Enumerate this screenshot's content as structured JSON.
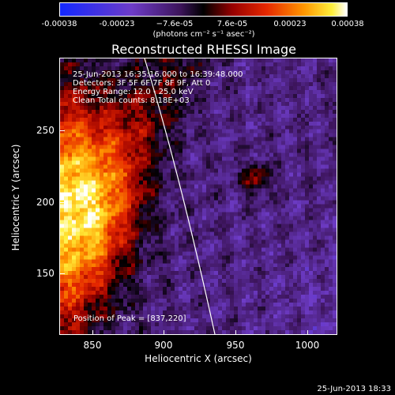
{
  "colorbar": {
    "ticks": [
      "-0.00038",
      "-0.00023",
      "−7.6e-05",
      "7.6e-05",
      "0.00023",
      "0.00038"
    ],
    "units": "(photons cm⁻² s⁻¹ asec⁻²)",
    "min": -0.00038,
    "max": 0.00038
  },
  "title": "Reconstructed RHESSI Image",
  "info": {
    "time": "25-Jun-2013 16:35:16.000 to 16:39:48.000",
    "detectors": "Detectors: 3F 5F 6F 7F 8F 9F, Att 0",
    "energy": "Energy Range: 12.0 - 25.0 keV",
    "clean": "Clean     Total counts: 8.18E+03"
  },
  "peak": "Position of Peak = [837,220]",
  "axes": {
    "xlabel": "Heliocentric X (arcsec)",
    "ylabel": "Heliocentric Y (arcsec)",
    "xticks": [
      "850",
      "900",
      "950",
      "1000"
    ],
    "yticks": [
      "250",
      "200",
      "150"
    ],
    "xlim": [
      828,
      1022
    ],
    "ylim": [
      104,
      291
    ]
  },
  "footer": "25-Jun-2013 18:33"
}
